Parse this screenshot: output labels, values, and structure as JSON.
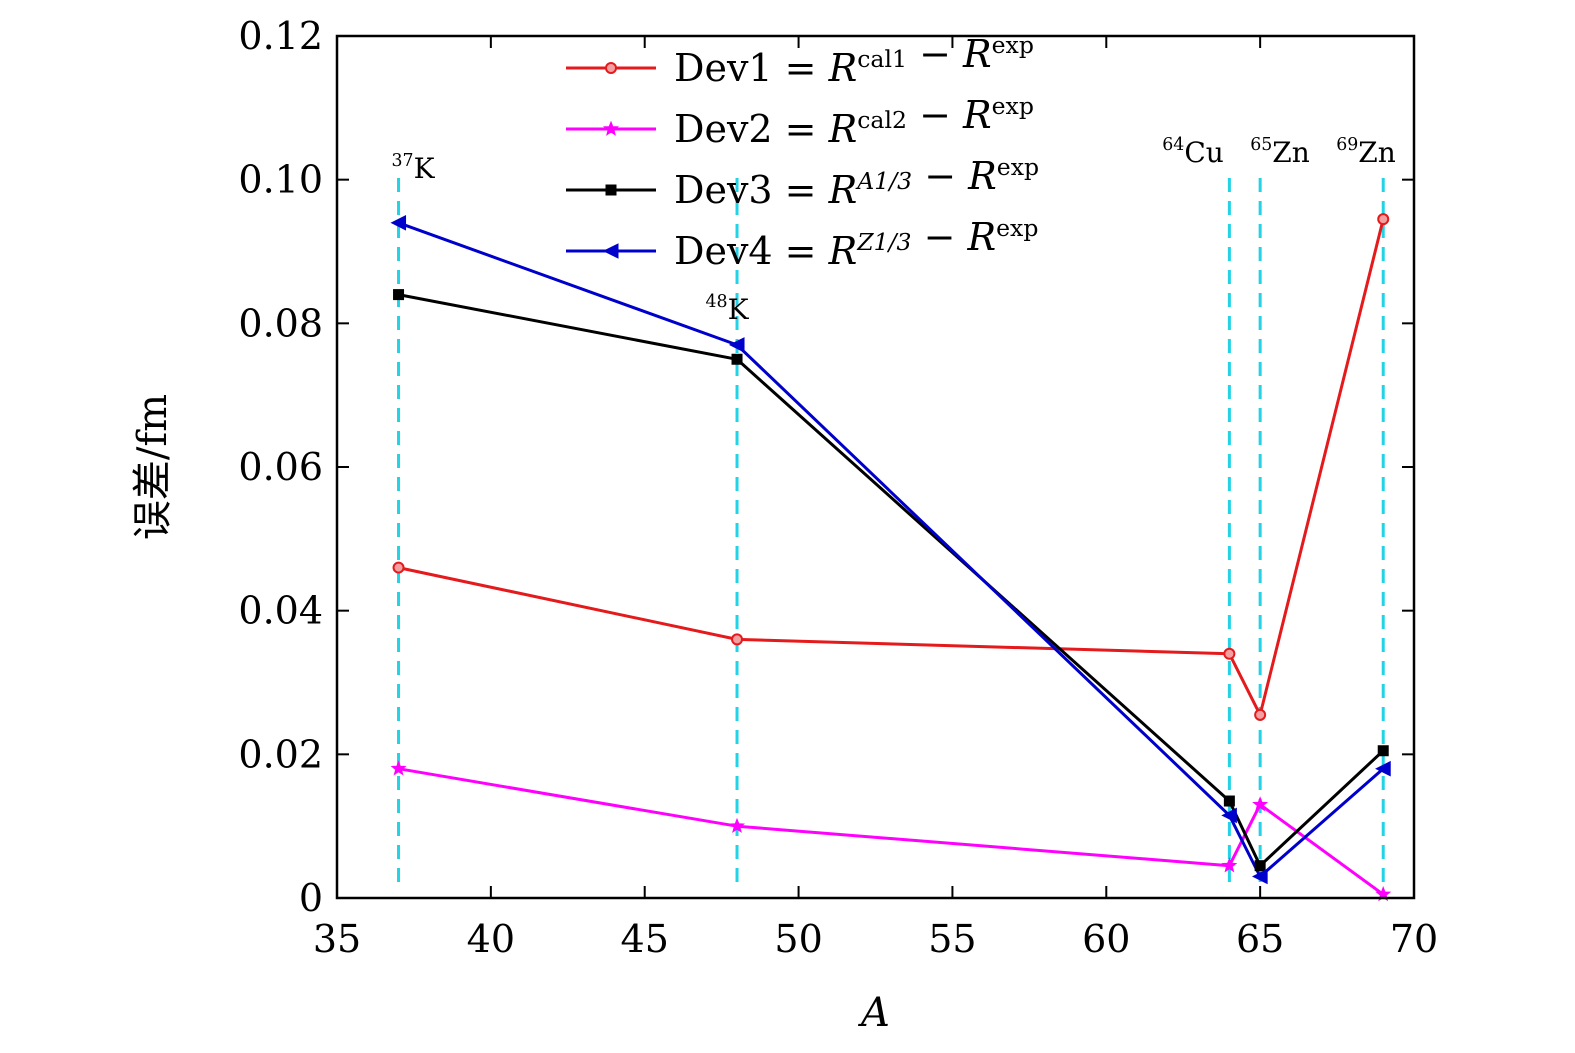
{
  "chart_data": {
    "type": "line",
    "xlabel": "A",
    "ylabel": "误差/fm",
    "xlim": [
      35,
      70
    ],
    "ylim": [
      0,
      0.12
    ],
    "xticks": [
      35,
      40,
      45,
      50,
      55,
      60,
      65,
      70
    ],
    "yticks": [
      0,
      0.02,
      0.04,
      0.06,
      0.08,
      0.1
    ],
    "ytick_labels": [
      "0",
      "0.02",
      "0.04",
      "0.06",
      "0.08",
      "0.10"
    ],
    "ytick_top_label": "0.12",
    "grid": false,
    "legend_position": "top",
    "x": [
      37,
      48,
      64,
      65,
      69
    ],
    "series": [
      {
        "id": "dev1",
        "name": "Dev1",
        "legend_parts": [
          "Dev1 = ",
          "R",
          "cal1",
          " − ",
          "R",
          "exp"
        ],
        "color": "#e41a1c",
        "marker": "circle",
        "values": [
          0.046,
          0.036,
          0.034,
          0.0255,
          0.0945
        ]
      },
      {
        "id": "dev2",
        "name": "Dev2",
        "legend_parts": [
          "Dev2 = ",
          "R",
          "cal2",
          " − ",
          "R",
          "exp"
        ],
        "color": "#ff00ff",
        "marker": "star",
        "values": [
          0.018,
          0.01,
          0.0045,
          0.013,
          0.0005
        ]
      },
      {
        "id": "dev3",
        "name": "Dev3",
        "legend_parts": [
          "Dev3 = ",
          "R",
          "A1/3",
          " − ",
          "R",
          "exp"
        ],
        "color": "#000000",
        "marker": "square",
        "values": [
          0.084,
          0.075,
          0.0135,
          0.0045,
          0.0205
        ]
      },
      {
        "id": "dev4",
        "name": "Dev4",
        "legend_parts": [
          "Dev4 = ",
          "R",
          "Z1/3",
          " − ",
          "R",
          "exp"
        ],
        "color": "#0000cc",
        "marker": "triangle-left",
        "values": [
          0.094,
          0.077,
          0.0115,
          0.003,
          0.018
        ]
      }
    ],
    "reference_lines": {
      "color": "#22d3e6",
      "style": "dashed",
      "x": [
        37,
        48,
        64,
        65,
        69
      ]
    },
    "annotations": [
      {
        "id": "k37",
        "x": 37,
        "mass": "37",
        "element": "K"
      },
      {
        "id": "k48",
        "x": 48,
        "mass": "48",
        "element": "K"
      },
      {
        "id": "cu64",
        "x": 64,
        "mass": "64",
        "element": "Cu"
      },
      {
        "id": "zn65",
        "x": 65,
        "mass": "65",
        "element": "Zn"
      },
      {
        "id": "zn69",
        "x": 69,
        "mass": "69",
        "element": "Zn"
      }
    ]
  }
}
